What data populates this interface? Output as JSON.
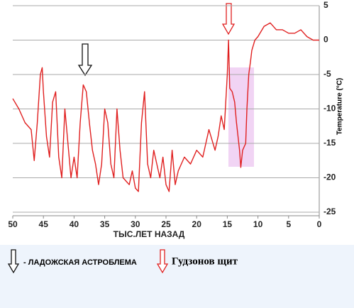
{
  "chart_data": {
    "type": "line",
    "x_label": "ТЫС.ЛЕТ НАЗАД",
    "y_label": "Temperature (°C)",
    "x": [
      50,
      49,
      48,
      47,
      46.5,
      46,
      45.5,
      45.2,
      45,
      44.5,
      44,
      43.5,
      43,
      42.5,
      42,
      41.5,
      41,
      40.5,
      40,
      39.5,
      39,
      38.5,
      38,
      37.5,
      37,
      36.5,
      36,
      35.5,
      35,
      34.5,
      34,
      33.5,
      33,
      32.5,
      32,
      31.5,
      31,
      30.5,
      30,
      29.5,
      29,
      28.5,
      28,
      27.5,
      27,
      26.5,
      26,
      25.5,
      25,
      24.5,
      24,
      23.5,
      23,
      22,
      21,
      20,
      19,
      18,
      17,
      16.5,
      16,
      15.5,
      15,
      14.8,
      14.6,
      14.2,
      13.8,
      13.5,
      13,
      12.8,
      12.5,
      12,
      11.8,
      11.5,
      11.2,
      11,
      10.5,
      10,
      9,
      8,
      7,
      6,
      5,
      4,
      3,
      2,
      1,
      0
    ],
    "series": [
      {
        "name": "Temperature",
        "color": "#e02020",
        "values": [
          -8.5,
          -10,
          -12,
          -13,
          -17.5,
          -12,
          -5,
          -4,
          -7.5,
          -14,
          -17,
          -9,
          -7.5,
          -17,
          -20,
          -10,
          -15,
          -20,
          -17,
          -20,
          -12,
          -6.5,
          -7.5,
          -12,
          -16,
          -18,
          -21,
          -18,
          -10,
          -12,
          -18,
          -20,
          -10,
          -16,
          -20,
          -20.5,
          -21,
          -19,
          -21.5,
          -22,
          -12,
          -7.5,
          -18,
          -20,
          -16,
          -18,
          -20,
          -17,
          -21,
          -22,
          -16,
          -21,
          -19,
          -17,
          -18,
          -16,
          -17,
          -13,
          -16,
          -14,
          -11,
          -13,
          -5,
          0,
          -7,
          -7.5,
          -9,
          -12,
          -16,
          -18.5,
          -16,
          -15,
          -10,
          -5,
          -3,
          -1.5,
          0,
          0.5,
          2,
          2.5,
          1.5,
          1.5,
          1,
          1,
          1.5,
          0.5,
          0,
          0
        ]
      }
    ],
    "xlim": [
      50,
      0
    ],
    "xticks": [
      50,
      45,
      40,
      35,
      30,
      25,
      20,
      15,
      10,
      5,
      0
    ],
    "ylim": [
      -25,
      5
    ],
    "yticks": [
      5,
      0,
      -5,
      -10,
      -15,
      -20,
      -25
    ],
    "grid": true
  },
  "legend": {
    "items": [
      {
        "label": "- ЛАДОЖСКАЯ АСТРОБЛЕМА"
      },
      {
        "label": "Гудзонов щит"
      }
    ]
  }
}
